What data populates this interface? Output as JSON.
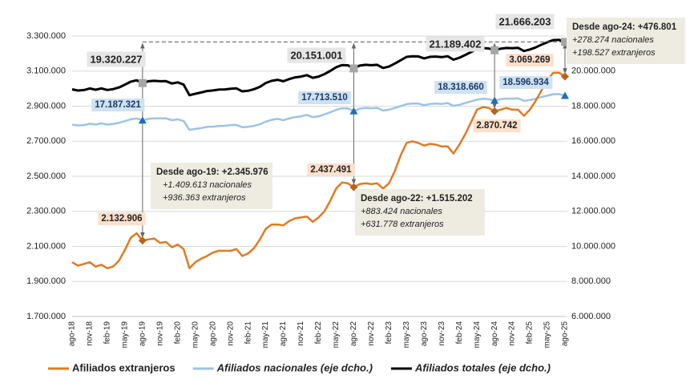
{
  "chart_data": {
    "type": "line",
    "categories": [
      "ago-18",
      null,
      null,
      "nov-18",
      null,
      null,
      "feb-19",
      null,
      null,
      "may-19",
      null,
      null,
      "ago-19",
      null,
      null,
      "nov-19",
      null,
      null,
      "feb-20",
      null,
      null,
      "may-20",
      null,
      null,
      "ago-20",
      null,
      null,
      "nov-20",
      null,
      null,
      "feb-21",
      null,
      null,
      "may-21",
      null,
      null,
      "ago-21",
      null,
      null,
      "nov-21",
      null,
      null,
      "feb-22",
      null,
      null,
      "may-22",
      null,
      null,
      "ago-22",
      null,
      null,
      "nov-22",
      null,
      null,
      "feb-23",
      null,
      null,
      "may-23",
      null,
      null,
      "ago-23",
      null,
      null,
      "nov-23",
      null,
      null,
      "feb-24",
      null,
      null,
      "may-24",
      null,
      null,
      "ago-24",
      null,
      null,
      "nov-24",
      null,
      null,
      "feb-25",
      null,
      null,
      "may-25",
      null,
      null,
      "ago-25"
    ],
    "series": [
      {
        "name": "Afiliados extranjeros",
        "color": "#e07b23",
        "axis": "y",
        "values": [
          2010000,
          1990000,
          2000000,
          2010000,
          1985000,
          1995000,
          1975000,
          1985000,
          2020000,
          2080000,
          2150000,
          2175000,
          2132906,
          2140000,
          2145000,
          2120000,
          2125000,
          2095000,
          2110000,
          2085000,
          1975000,
          2010000,
          2030000,
          2045000,
          2065000,
          2075000,
          2075000,
          2075000,
          2085000,
          2045000,
          2060000,
          2090000,
          2140000,
          2200000,
          2225000,
          2225000,
          2220000,
          2245000,
          2260000,
          2265000,
          2270000,
          2240000,
          2265000,
          2300000,
          2360000,
          2430000,
          2465000,
          2460000,
          2437491,
          2455000,
          2460000,
          2455000,
          2460000,
          2430000,
          2460000,
          2530000,
          2620000,
          2690000,
          2700000,
          2690000,
          2675000,
          2685000,
          2680000,
          2670000,
          2670000,
          2630000,
          2680000,
          2740000,
          2810000,
          2880000,
          2895000,
          2890000,
          2870742,
          2880000,
          2890000,
          2880000,
          2880000,
          2845000,
          2880000,
          2930000,
          2990000,
          3050000,
          3090000,
          3090000,
          3069269
        ],
        "value_labels": {
          "12": "2.132.906",
          "48": "2.437.491",
          "72": "2.870.742",
          "84": "3.069.269"
        }
      },
      {
        "name": "Afiliados nacionales (eje dcho.)",
        "color": "#9dc3e6",
        "axis": "y2",
        "values": [
          16950000,
          16900000,
          16920000,
          17000000,
          16950000,
          17020000,
          16950000,
          16990000,
          17050000,
          17150000,
          17250000,
          17300000,
          17187321,
          17280000,
          17300000,
          17300000,
          17300000,
          17200000,
          17250000,
          17150000,
          16650000,
          16700000,
          16750000,
          16820000,
          16830000,
          16870000,
          16880000,
          16920000,
          16930000,
          16800000,
          16820000,
          16880000,
          16960000,
          17120000,
          17220000,
          17280000,
          17200000,
          17300000,
          17380000,
          17420000,
          17500000,
          17380000,
          17420000,
          17530000,
          17650000,
          17790000,
          17880000,
          17870000,
          17713510,
          17860000,
          17900000,
          17880000,
          17900000,
          17750000,
          17800000,
          17900000,
          18000000,
          18120000,
          18150000,
          18150000,
          18050000,
          18130000,
          18150000,
          18130000,
          18180000,
          18020000,
          18080000,
          18180000,
          18280000,
          18370000,
          18420000,
          18400000,
          18318660,
          18400000,
          18430000,
          18430000,
          18450000,
          18300000,
          18350000,
          18420000,
          18520000,
          18600000,
          18680000,
          18690000,
          18596934
        ],
        "value_labels": {
          "12": "17.187.321",
          "48": "17.713.510",
          "72": "18.318.660",
          "84": "18.596.934"
        }
      },
      {
        "name": "Afiliados totales (eje dcho.)",
        "color": "#000000",
        "axis": "y2",
        "values": [
          18960000,
          18890000,
          18920000,
          19010000,
          18935000,
          19015000,
          18925000,
          18975000,
          19070000,
          19230000,
          19400000,
          19475000,
          19320227,
          19420000,
          19445000,
          19420000,
          19425000,
          19295000,
          19360000,
          19235000,
          18625000,
          18710000,
          18780000,
          18865000,
          18895000,
          18945000,
          18955000,
          18995000,
          19015000,
          18845000,
          18880000,
          18970000,
          19100000,
          19320000,
          19445000,
          19505000,
          19420000,
          19545000,
          19640000,
          19685000,
          19770000,
          19620000,
          19685000,
          19830000,
          20010000,
          20220000,
          20345000,
          20330000,
          20151001,
          20315000,
          20360000,
          20335000,
          20360000,
          20180000,
          20260000,
          20430000,
          20620000,
          20810000,
          20850000,
          20840000,
          20725000,
          20815000,
          20830000,
          20800000,
          20850000,
          20650000,
          20760000,
          20920000,
          21090000,
          21250000,
          21315000,
          21290000,
          21189402,
          21280000,
          21320000,
          21310000,
          21330000,
          21145000,
          21230000,
          21350000,
          21510000,
          21650000,
          21770000,
          21780000,
          21666203
        ],
        "value_labels": {
          "12": "19.320.227",
          "48": "20.151.001",
          "72": "21.189.402",
          "84": "21.666.203"
        }
      }
    ],
    "ylim": [
      1700000,
      3300000
    ],
    "yticks": [
      {
        "value": 1700000,
        "label": "1.700.000"
      },
      {
        "value": 1900000,
        "label": "1.900.000"
      },
      {
        "value": 2100000,
        "label": "2.100.000"
      },
      {
        "value": 2300000,
        "label": "2.300.000"
      },
      {
        "value": 2500000,
        "label": "2.500.000"
      },
      {
        "value": 2700000,
        "label": "2.700.000"
      },
      {
        "value": 2900000,
        "label": "2.900.000"
      },
      {
        "value": 3100000,
        "label": "3.100.000"
      },
      {
        "value": 3300000,
        "label": "3.300.000"
      }
    ],
    "y2lim": [
      6000000,
      22000000
    ],
    "y2ticks": [
      {
        "value": 6000000,
        "label": "6.000.000"
      },
      {
        "value": 8000000,
        "label": "8.000.000"
      },
      {
        "value": 10000000,
        "label": "10.000.000"
      },
      {
        "value": 12000000,
        "label": "12.000.000"
      },
      {
        "value": 14000000,
        "label": "14.000.000"
      },
      {
        "value": 16000000,
        "label": "16.000.000"
      },
      {
        "value": 18000000,
        "label": "18.000.000"
      },
      {
        "value": 20000000,
        "label": "20.000.000"
      }
    ],
    "grid": true,
    "legend": "bottom",
    "annotations": [
      {
        "lines": [
          "Desde ago-19: +2.345.976",
          "+1.409.613 nacionales",
          "+936.363 extranjeros"
        ]
      },
      {
        "lines": [
          "Desde ago-22: +1.515.202",
          "+883.424 nacionales",
          "+631.778 extranjeros"
        ]
      },
      {
        "lines": [
          "Desde ago-24: +476.801",
          "+278.274 nacionales",
          "+198.527 extranjeros"
        ]
      }
    ]
  }
}
